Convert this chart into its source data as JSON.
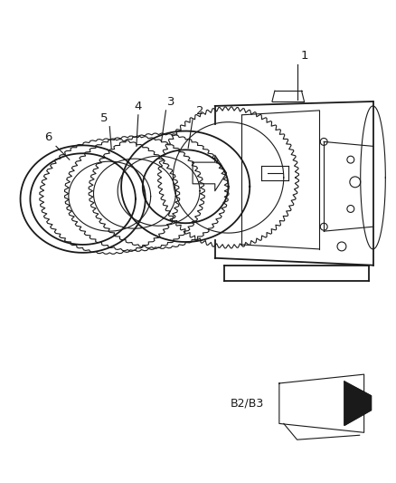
{
  "bg_color": "#ffffff",
  "line_color": "#1a1a1a",
  "fig_width": 4.38,
  "fig_height": 5.33,
  "b2b3_label": "B2/B3"
}
